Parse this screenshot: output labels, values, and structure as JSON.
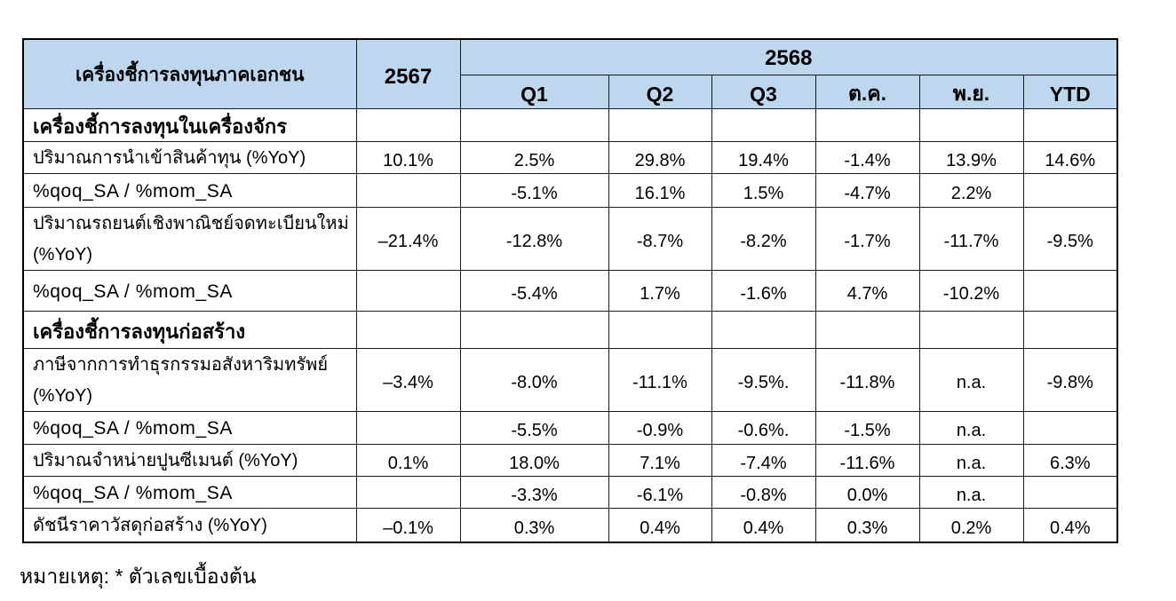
{
  "table": {
    "indicator_header": "เครื่องชี้การลงทุนภาคเอกชน",
    "prev_year_header": "2567",
    "current_year_header": "2568",
    "period_headers": [
      "Q1",
      "Q2",
      "Q3",
      "ต.ค.",
      "พ.ย.",
      "YTD"
    ],
    "rows": [
      {
        "type": "section",
        "label": "เครื่องชี้การลงทุนในเครื่องจักร",
        "y2567": "",
        "values": [
          "",
          "",
          "",
          "",
          "",
          ""
        ]
      },
      {
        "type": "data",
        "label": "ปริมาณการนำเข้าสินค้าทุน (%YoY)",
        "y2567": "10.1%",
        "values": [
          "2.5%",
          "29.8%",
          "19.4%",
          "-1.4%",
          "13.9%",
          "14.6%"
        ]
      },
      {
        "type": "data",
        "label": "%qoq_SA / %mom_SA",
        "y2567": "",
        "values": [
          "-5.1%",
          "16.1%",
          "1.5%",
          "-4.7%",
          "2.2%",
          ""
        ]
      },
      {
        "type": "data",
        "label": "ปริมาณรถยนต์เชิงพาณิชย์จดทะเบียนใหม่\n(%YoY)",
        "y2567": "–21.4%",
        "values": [
          "-12.8%",
          "-8.7%",
          "-8.2%",
          "-1.7%",
          "-11.7%",
          "-9.5%"
        ]
      },
      {
        "type": "data",
        "label": "%qoq_SA / %mom_SA",
        "y2567": "",
        "values": [
          "-5.4%",
          "1.7%",
          "-1.6%",
          "4.7%",
          "-10.2%",
          ""
        ]
      },
      {
        "type": "section",
        "label": "เครื่องชี้การลงทุนก่อสร้าง",
        "y2567": "",
        "values": [
          "",
          "",
          "",
          "",
          "",
          ""
        ]
      },
      {
        "type": "data",
        "label": "ภาษีจากการทำธุรกรรมอสังหาริมทรัพย์\n(%YoY)",
        "y2567": "–3.4%",
        "values": [
          "-8.0%",
          "-11.1%",
          "-9.5%.",
          "-11.8%",
          "n.a.",
          "-9.8%"
        ]
      },
      {
        "type": "data",
        "label": "%qoq_SA / %mom_SA",
        "y2567": "",
        "values": [
          "-5.5%",
          "-0.9%",
          "-0.6%.",
          "-1.5%",
          "n.a.",
          ""
        ]
      },
      {
        "type": "data",
        "label": "ปริมาณจำหน่ายปูนซีเมนต์ (%YoY)",
        "y2567": "0.1%",
        "values": [
          "18.0%",
          "7.1%",
          "-7.4%",
          "-11.6%",
          "n.a.",
          "6.3%"
        ]
      },
      {
        "type": "data",
        "label": "%qoq_SA / %mom_SA",
        "y2567": "",
        "values": [
          "-3.3%",
          "-6.1%",
          "-0.8%",
          "0.0%",
          "n.a.",
          ""
        ]
      },
      {
        "type": "data",
        "label": "ดัชนีราคาวัสดุก่อสร้าง (%YoY)",
        "y2567": "–0.1%",
        "values": [
          "0.3%",
          "0.4%",
          "0.4%",
          "0.3%",
          "0.2%",
          "0.4%"
        ]
      }
    ]
  },
  "footnote": "หมายเหตุ: * ตัวเลขเบื้องต้น",
  "colors": {
    "header_bg": "#BDD7EE",
    "border": "#000000",
    "text": "#000000"
  }
}
